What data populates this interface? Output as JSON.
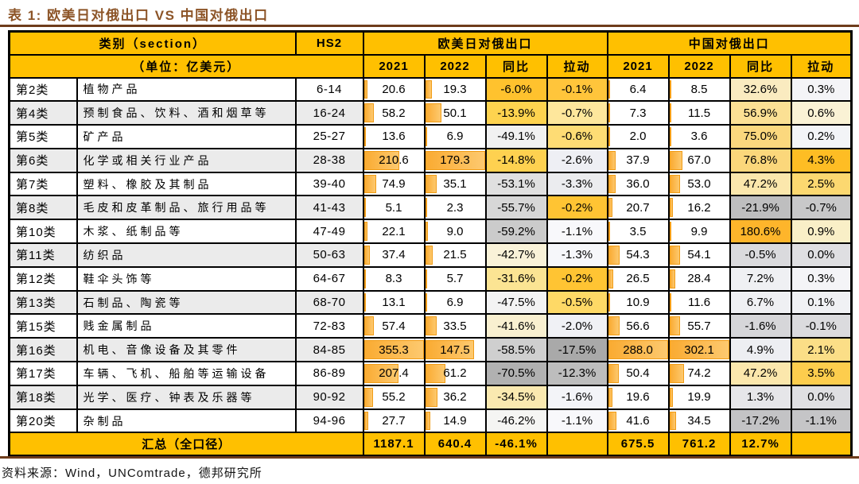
{
  "title": "表 1: 欧美日对俄出口 VS 中国对俄出口",
  "source": "资料来源：Wind，UNComtrade，德邦研究所",
  "colors": {
    "header_bg": "#FFC000",
    "summary_bg": "#FFC000",
    "bar_fill_start": "#FAAB32",
    "bar_fill_end": "#FDC96F",
    "bar_border": "#F19C16",
    "zebra": "#EBEBEB",
    "rule": "#6E3C1B",
    "title_color": "#8C5427",
    "border": "#000000"
  },
  "table": {
    "header": {
      "col_category": "类别（section）",
      "unit": "（单位：亿美元）",
      "col_hs2": "HS2",
      "group_eu": "欧美日对俄出口",
      "group_cn": "中国对俄出口",
      "sub": {
        "y2021": "2021",
        "y2022": "2022",
        "yoy": "同比",
        "pull": "拉动"
      }
    },
    "bar_max": {
      "eu2021": 355.3,
      "eu2022": 179.3,
      "cn2021": 288.0,
      "cn2022": 302.1
    },
    "rows": [
      {
        "cat": "第2类",
        "name": "植物产品",
        "hs2": "6-14",
        "eu": {
          "v2021": "20.6",
          "v2022": "19.3",
          "yoy": "-6.0%",
          "yoy_bg": "#FFC22E",
          "pull": "-0.1%",
          "pull_bg": "#FFC53B"
        },
        "cn": {
          "v2021": "6.4",
          "v2022": "8.5",
          "yoy": "32.6%",
          "yoy_bg": "#FAEBC0",
          "pull": "0.3%",
          "pull_bg": "#F4F4F7"
        }
      },
      {
        "cat": "第4类",
        "name": "预制食品、饮料、酒和烟草等",
        "hs2": "16-24",
        "eu": {
          "v2021": "58.2",
          "v2022": "50.1",
          "yoy": "-13.9%",
          "yoy_bg": "#FED34F",
          "pull": "-0.7%",
          "pull_bg": "#FEE79C"
        },
        "cn": {
          "v2021": "7.3",
          "v2022": "11.5",
          "yoy": "56.9%",
          "yoy_bg": "#FBE094",
          "pull": "0.6%",
          "pull_bg": "#FAF2D5"
        }
      },
      {
        "cat": "第5类",
        "name": "矿产品",
        "hs2": "25-27",
        "eu": {
          "v2021": "13.6",
          "v2022": "6.9",
          "yoy": "-49.1%",
          "yoy_bg": "#F1F1F1",
          "pull": "-0.6%",
          "pull_bg": "#FEDC74"
        },
        "cn": {
          "v2021": "2.0",
          "v2022": "3.6",
          "yoy": "75.0%",
          "yoy_bg": "#FBD87E",
          "pull": "0.2%",
          "pull_bg": "#F3F4F7"
        }
      },
      {
        "cat": "第6类",
        "name": "化学或相关行业产品",
        "hs2": "28-38",
        "eu": {
          "v2021": "210.6",
          "v2022": "179.3",
          "yoy": "-14.8%",
          "yoy_bg": "#FED150",
          "pull": "-2.6%",
          "pull_bg": "#EEEFF4"
        },
        "cn": {
          "v2021": "37.9",
          "v2022": "67.0",
          "yoy": "76.8%",
          "yoy_bg": "#FBD77B",
          "pull": "4.3%",
          "pull_bg": "#FEBD24"
        }
      },
      {
        "cat": "第7类",
        "name": "塑料、橡胶及其制品",
        "hs2": "39-40",
        "eu": {
          "v2021": "74.9",
          "v2022": "35.1",
          "yoy": "-53.1%",
          "yoy_bg": "#E0E0E0",
          "pull": "-3.3%",
          "pull_bg": "#EBECEF"
        },
        "cn": {
          "v2021": "36.0",
          "v2022": "53.0",
          "yoy": "47.2%",
          "yoy_bg": "#FBE7AC",
          "pull": "2.5%",
          "pull_bg": "#FCD870"
        }
      },
      {
        "cat": "第8类",
        "name": "毛皮和皮革制品、旅行用品等",
        "hs2": "41-43",
        "eu": {
          "v2021": "5.1",
          "v2022": "2.3",
          "yoy": "-55.7%",
          "yoy_bg": "#D7D7D7",
          "pull": "-0.2%",
          "pull_bg": "#FFC433"
        },
        "cn": {
          "v2021": "20.7",
          "v2022": "16.2",
          "yoy": "-21.9%",
          "yoy_bg": "#BEBEBF",
          "pull": "-0.7%",
          "pull_bg": "#C8C8C9"
        }
      },
      {
        "cat": "第10类",
        "name": "木浆、纸制品等",
        "hs2": "47-49",
        "eu": {
          "v2021": "22.1",
          "v2022": "9.0",
          "yoy": "-59.2%",
          "yoy_bg": "#CBCBCB",
          "pull": "-1.1%",
          "pull_bg": "#F8F8FB"
        },
        "cn": {
          "v2021": "3.5",
          "v2022": "9.9",
          "yoy": "180.6%",
          "yoy_bg": "#FEB52B",
          "pull": "0.9%",
          "pull_bg": "#F9EFC7"
        }
      },
      {
        "cat": "第11类",
        "name": "纺织品",
        "hs2": "50-63",
        "eu": {
          "v2021": "37.4",
          "v2022": "21.5",
          "yoy": "-42.7%",
          "yoy_bg": "#F9F2D8",
          "pull": "-1.3%",
          "pull_bg": "#F6F7FA"
        },
        "cn": {
          "v2021": "54.3",
          "v2022": "54.1",
          "yoy": "-0.5%",
          "yoy_bg": "#DADADD",
          "pull": "0.0%",
          "pull_bg": "#DFDFE2"
        }
      },
      {
        "cat": "第12类",
        "name": "鞋伞头饰等",
        "hs2": "64-67",
        "eu": {
          "v2021": "8.3",
          "v2022": "5.7",
          "yoy": "-31.6%",
          "yoy_bg": "#FBE493",
          "pull": "-0.2%",
          "pull_bg": "#FFC433"
        },
        "cn": {
          "v2021": "26.5",
          "v2022": "28.4",
          "yoy": "7.2%",
          "yoy_bg": "#EFF0F3",
          "pull": "0.3%",
          "pull_bg": "#F4F4F7"
        }
      },
      {
        "cat": "第13类",
        "name": "石制品、陶瓷等",
        "hs2": "68-70",
        "eu": {
          "v2021": "13.1",
          "v2022": "6.9",
          "yoy": "-47.5%",
          "yoy_bg": "#F3F3F3",
          "pull": "-0.5%",
          "pull_bg": "#FED966"
        },
        "cn": {
          "v2021": "10.9",
          "v2022": "11.6",
          "yoy": "6.7%",
          "yoy_bg": "#EFF0F3",
          "pull": "0.1%",
          "pull_bg": "#F0F1F4"
        }
      },
      {
        "cat": "第15类",
        "name": "贱金属制品",
        "hs2": "72-83",
        "eu": {
          "v2021": "57.4",
          "v2022": "33.5",
          "yoy": "-41.6%",
          "yoy_bg": "#F9F0D0",
          "pull": "-2.0%",
          "pull_bg": "#F0F1F5"
        },
        "cn": {
          "v2021": "56.6",
          "v2022": "55.7",
          "yoy": "-1.6%",
          "yoy_bg": "#D6D6D9",
          "pull": "-0.1%",
          "pull_bg": "#DBDBDE"
        }
      },
      {
        "cat": "第16类",
        "name": "机电、音像设备及其零件",
        "hs2": "84-85",
        "eu": {
          "v2021": "355.3",
          "v2022": "147.5",
          "yoy": "-58.5%",
          "yoy_bg": "#CFCFCF",
          "pull": "-17.5%",
          "pull_bg": "#A9A9A9"
        },
        "cn": {
          "v2021": "288.0",
          "v2022": "302.1",
          "yoy": "4.9%",
          "yoy_bg": "#EDEEF2",
          "pull": "2.1%",
          "pull_bg": "#FBDE87"
        }
      },
      {
        "cat": "第17类",
        "name": "车辆、飞机、船舶等运输设备",
        "hs2": "86-89",
        "eu": {
          "v2021": "207.4",
          "v2022": "61.2",
          "yoy": "-70.5%",
          "yoy_bg": "#B1B1B1",
          "pull": "-12.3%",
          "pull_bg": "#BDBDBD"
        },
        "cn": {
          "v2021": "50.4",
          "v2022": "74.2",
          "yoy": "47.2%",
          "yoy_bg": "#FBE7AC",
          "pull": "3.5%",
          "pull_bg": "#FDCD4D"
        }
      },
      {
        "cat": "第18类",
        "name": "光学、医疗、钟表及乐器等",
        "hs2": "90-92",
        "eu": {
          "v2021": "55.2",
          "v2022": "36.2",
          "yoy": "-34.5%",
          "yoy_bg": "#FAE9B0",
          "pull": "-1.6%",
          "pull_bg": "#F3F4F8"
        },
        "cn": {
          "v2021": "19.6",
          "v2022": "19.9",
          "yoy": "1.3%",
          "yoy_bg": "#E6E6E9",
          "pull": "0.0%",
          "pull_bg": "#DFDFE2"
        }
      },
      {
        "cat": "第20类",
        "name": "杂制品",
        "hs2": "94-96",
        "eu": {
          "v2021": "27.7",
          "v2022": "14.9",
          "yoy": "-46.2%",
          "yoy_bg": "#F5F5F3",
          "pull": "-1.1%",
          "pull_bg": "#F8F8FB"
        },
        "cn": {
          "v2021": "41.6",
          "v2022": "34.5",
          "yoy": "-17.2%",
          "yoy_bg": "#C3C3C5",
          "pull": "-1.1%",
          "pull_bg": "#C5C5C7"
        }
      }
    ],
    "footer": {
      "label": "汇总（全口径）",
      "eu": [
        "1187.1",
        "640.4",
        "-46.1%",
        ""
      ],
      "cn": [
        "675.5",
        "761.2",
        "12.7%",
        ""
      ]
    }
  }
}
